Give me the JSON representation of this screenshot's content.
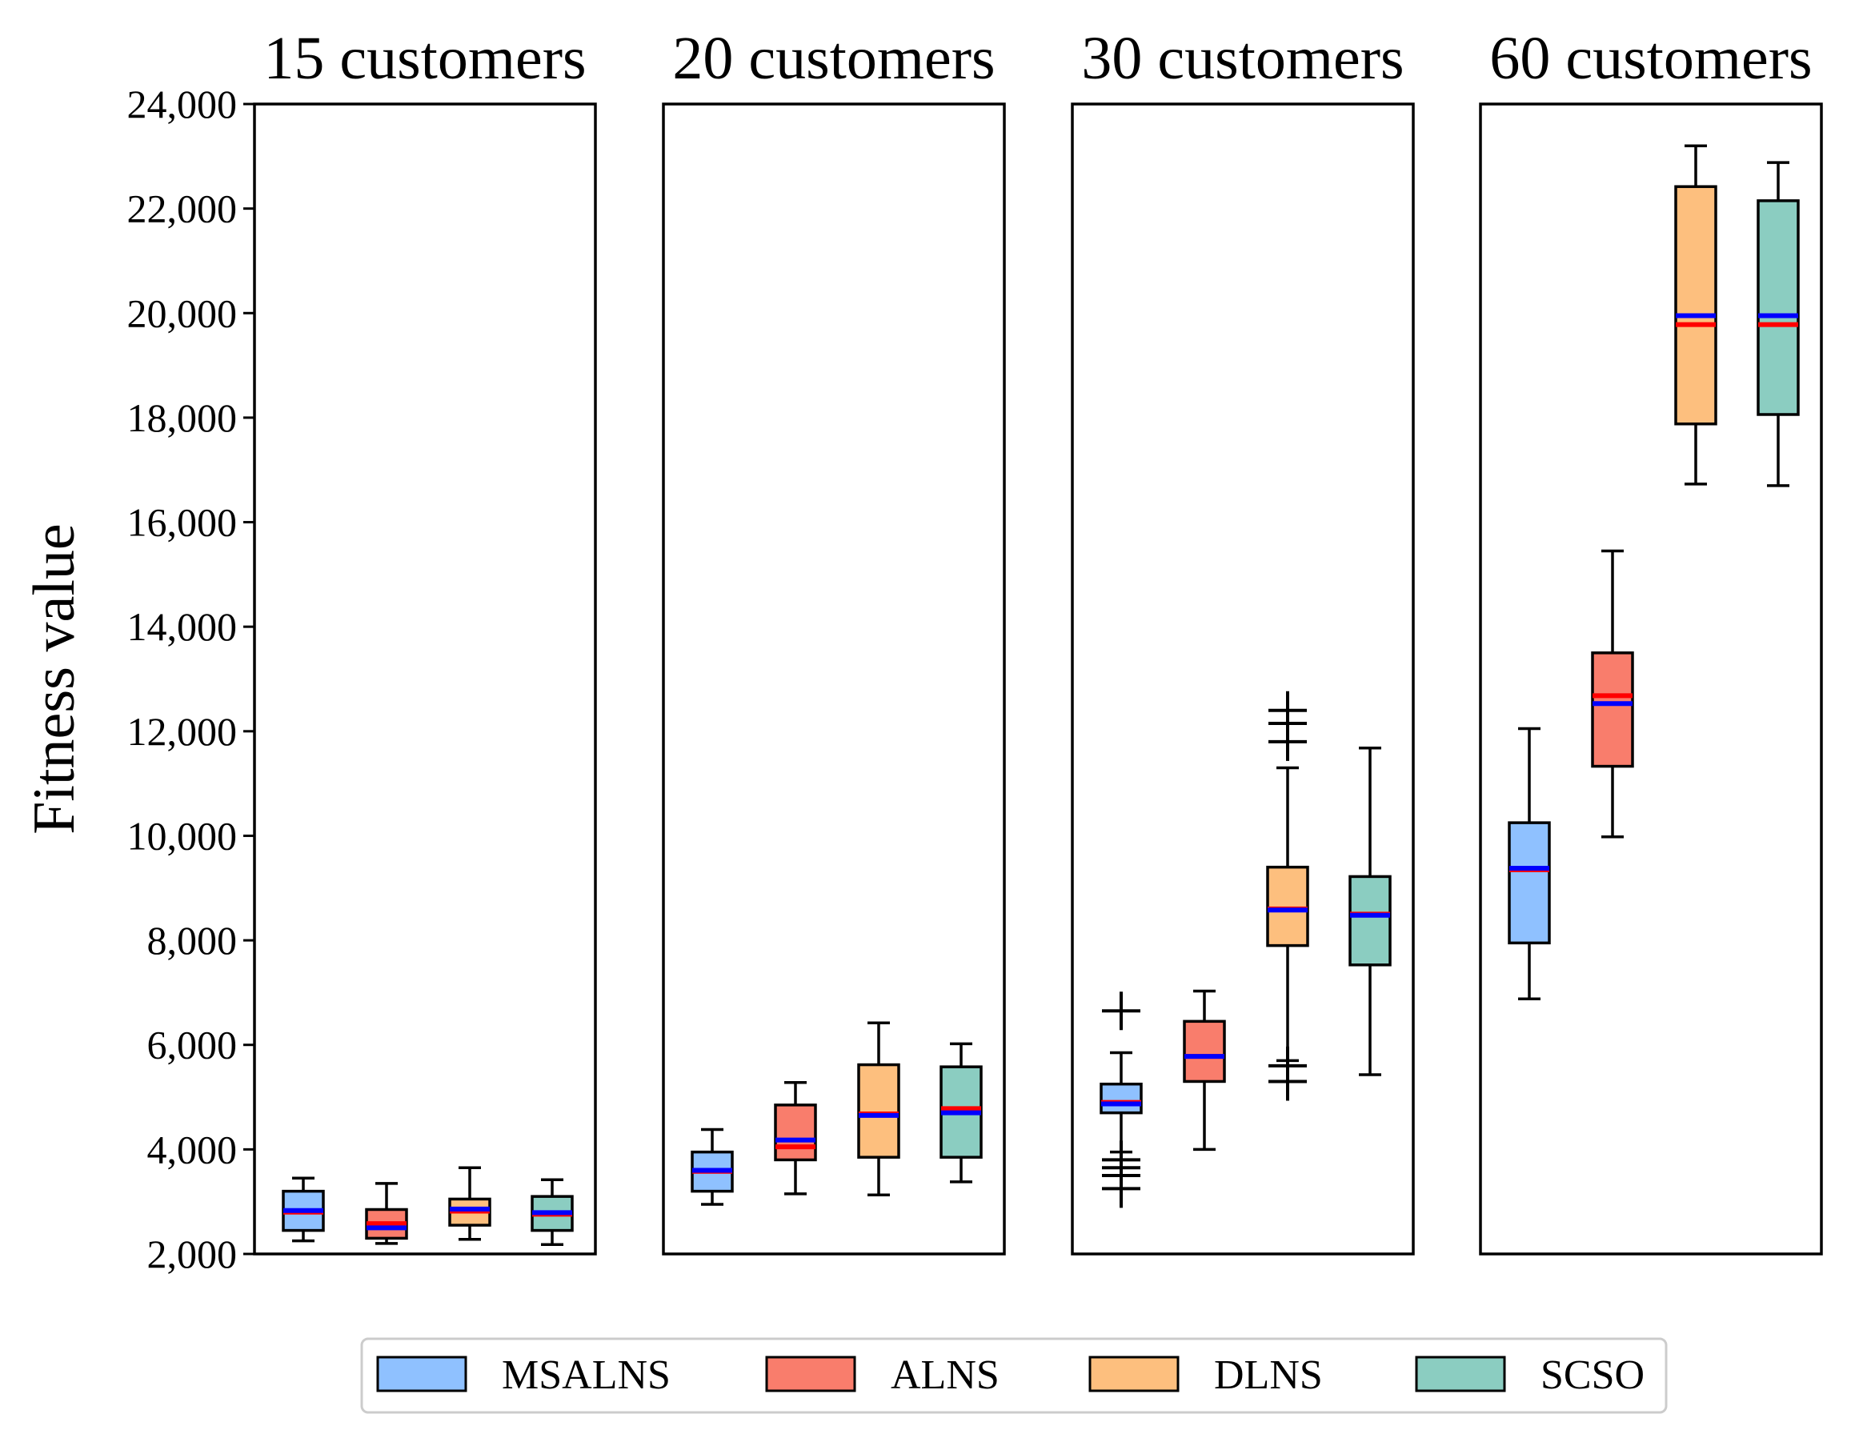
{
  "chart_data": {
    "type": "box",
    "ylabel": "Fitness value",
    "ylim": [
      2000,
      24000
    ],
    "yticks": [
      2000,
      4000,
      6000,
      8000,
      10000,
      12000,
      14000,
      16000,
      18000,
      20000,
      22000,
      24000
    ],
    "ytick_labels": [
      "2,000",
      "4,000",
      "6,000",
      "8,000",
      "10,000",
      "12,000",
      "14,000",
      "16,000",
      "18,000",
      "20,000",
      "22,000",
      "24,000"
    ],
    "median_color": "#ff0000",
    "mean_color": "#0000ff",
    "series": [
      {
        "name": "MSALNS",
        "color": "#8fc1ff"
      },
      {
        "name": "ALNS",
        "color": "#f97d6c"
      },
      {
        "name": "DLNS",
        "color": "#fdbf7e"
      },
      {
        "name": "SCSO",
        "color": "#8bcdc1"
      }
    ],
    "panels": [
      {
        "title": "15 customers",
        "boxes": [
          {
            "series": "MSALNS",
            "whisker_low": 2250,
            "q1": 2450,
            "median": 2800,
            "mean": 2830,
            "q3": 3200,
            "whisker_high": 3450,
            "outliers": []
          },
          {
            "series": "ALNS",
            "whisker_low": 2200,
            "q1": 2300,
            "median": 2580,
            "mean": 2500,
            "q3": 2850,
            "whisker_high": 3350,
            "outliers": []
          },
          {
            "series": "DLNS",
            "whisker_low": 2280,
            "q1": 2550,
            "median": 2820,
            "mean": 2860,
            "q3": 3050,
            "whisker_high": 3650,
            "outliers": []
          },
          {
            "series": "SCSO",
            "whisker_low": 2180,
            "q1": 2450,
            "median": 2760,
            "mean": 2790,
            "q3": 3100,
            "whisker_high": 3420,
            "outliers": []
          }
        ]
      },
      {
        "title": "20 customers",
        "boxes": [
          {
            "series": "MSALNS",
            "whisker_low": 2950,
            "q1": 3200,
            "median": 3580,
            "mean": 3600,
            "q3": 3950,
            "whisker_high": 4380,
            "outliers": []
          },
          {
            "series": "ALNS",
            "whisker_low": 3150,
            "q1": 3800,
            "median": 4050,
            "mean": 4180,
            "q3": 4850,
            "whisker_high": 5280,
            "outliers": []
          },
          {
            "series": "DLNS",
            "whisker_low": 3130,
            "q1": 3850,
            "median": 4680,
            "mean": 4650,
            "q3": 5620,
            "whisker_high": 6420,
            "outliers": []
          },
          {
            "series": "SCSO",
            "whisker_low": 3380,
            "q1": 3850,
            "median": 4780,
            "mean": 4700,
            "q3": 5580,
            "whisker_high": 6020,
            "outliers": []
          }
        ]
      },
      {
        "title": "30 customers",
        "boxes": [
          {
            "series": "MSALNS",
            "whisker_low": 3950,
            "q1": 4700,
            "median": 4900,
            "mean": 4870,
            "q3": 5250,
            "whisker_high": 5850,
            "outliers": [
              6650,
              3800,
              3650,
              3500,
              3250
            ]
          },
          {
            "series": "ALNS",
            "whisker_low": 4000,
            "q1": 5300,
            "median": 5780,
            "mean": 5780,
            "q3": 6450,
            "whisker_high": 7030,
            "outliers": []
          },
          {
            "series": "DLNS",
            "whisker_low": 5700,
            "q1": 7900,
            "median": 8600,
            "mean": 8580,
            "q3": 9400,
            "whisker_high": 11300,
            "outliers": [
              12400,
              12150,
              11800,
              5600,
              5300
            ]
          },
          {
            "series": "SCSO",
            "whisker_low": 5430,
            "q1": 7530,
            "median": 8500,
            "mean": 8480,
            "q3": 9220,
            "whisker_high": 11680,
            "outliers": []
          }
        ]
      },
      {
        "title": "60 customers",
        "boxes": [
          {
            "series": "MSALNS",
            "whisker_low": 6880,
            "q1": 7950,
            "median": 9350,
            "mean": 9380,
            "q3": 10250,
            "whisker_high": 12050,
            "outliers": []
          },
          {
            "series": "ALNS",
            "whisker_low": 9980,
            "q1": 11330,
            "median": 12680,
            "mean": 12530,
            "q3": 13500,
            "whisker_high": 15450,
            "outliers": []
          },
          {
            "series": "DLNS",
            "whisker_low": 16730,
            "q1": 17880,
            "median": 19780,
            "mean": 19950,
            "q3": 22420,
            "whisker_high": 23200,
            "outliers": []
          },
          {
            "series": "SCSO",
            "whisker_low": 16700,
            "q1": 18060,
            "median": 19780,
            "mean": 19950,
            "q3": 22150,
            "whisker_high": 22880,
            "outliers": []
          }
        ]
      }
    ],
    "legend": {
      "placement": "bottom-center",
      "entries": [
        "MSALNS",
        "ALNS",
        "DLNS",
        "SCSO"
      ]
    }
  }
}
